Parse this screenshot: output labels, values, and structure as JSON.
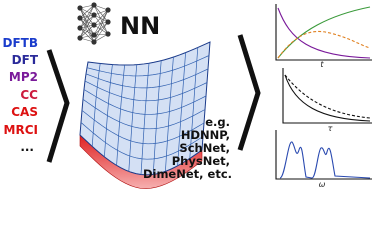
{
  "methods": [
    "DFTB",
    "DFT",
    "MP2",
    "CC",
    "CAS",
    "MRCI",
    "..."
  ],
  "nn_label": "NN",
  "examples": [
    "e.g.",
    "HDNNP,",
    "SchNet,",
    "PhysNet,",
    "DimeNet, etc."
  ],
  "plots": [
    {
      "x_label": "t"
    },
    {
      "x_label": "τ"
    },
    {
      "x_label": "ω"
    }
  ]
}
